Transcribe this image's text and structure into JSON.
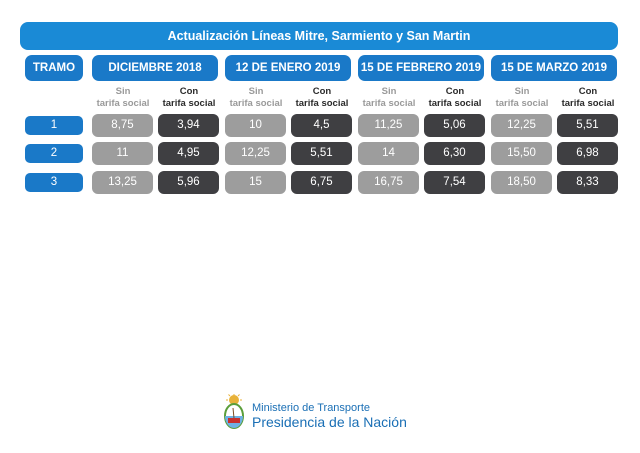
{
  "title": "Actualización Líneas Mitre, Sarmiento y San Martin",
  "tramo_header": "TRAMO",
  "periods": [
    {
      "label": "DICIEMBRE 2018"
    },
    {
      "label": "12 DE ENERO 2019"
    },
    {
      "label": "15 DE FEBRERO 2019"
    },
    {
      "label": "15 DE MARZO 2019"
    }
  ],
  "subheaders": {
    "sin_line1": "Sin",
    "sin_line2": "tarifa social",
    "con_line1": "Con",
    "con_line2": "tarifa social"
  },
  "rows": [
    {
      "tramo": "1",
      "values": [
        "8,75",
        "3,94",
        "10",
        "4,5",
        "11,25",
        "5,06",
        "12,25",
        "5,51"
      ]
    },
    {
      "tramo": "2",
      "values": [
        "11",
        "4,95",
        "12,25",
        "5,51",
        "14",
        "6,30",
        "15,50",
        "6,98"
      ]
    },
    {
      "tramo": "3",
      "values": [
        "13,25",
        "5,96",
        "15",
        "6,75",
        "16,75",
        "7,54",
        "18,50",
        "8,33"
      ]
    }
  ],
  "footer": {
    "ministry": "Ministerio de Transporte",
    "presidency": "Presidencia de la Nación"
  },
  "colors": {
    "banner": "#1a8ad6",
    "header": "#1a79c8",
    "sin_cell": "#9d9d9d",
    "con_cell": "#3f3f42",
    "footer_text": "#1a6fb5"
  },
  "icons": [
    "national-coat-of-arms-icon"
  ]
}
